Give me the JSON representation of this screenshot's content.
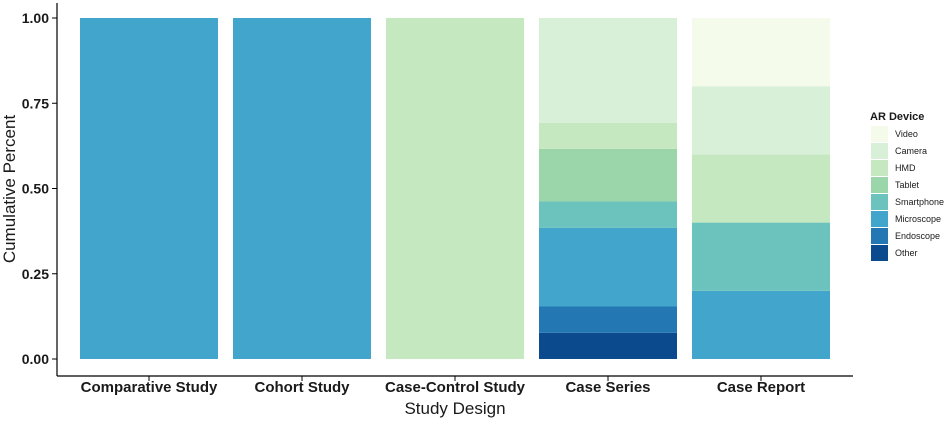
{
  "chart_data": {
    "type": "bar",
    "stacked": true,
    "xlabel": "Study Design",
    "ylabel": "Cumulative Percent",
    "ylim": [
      0,
      1
    ],
    "yticks": [
      "0.00",
      "0.25",
      "0.50",
      "0.75",
      "1.00"
    ],
    "categories": [
      "Comparative Study",
      "Cohort Study",
      "Case-Control Study",
      "Case Series",
      "Case Report"
    ],
    "legend_title": "AR Device",
    "legend_position": "right",
    "series": [
      {
        "name": "Other",
        "color": "#0c4a8e",
        "values": [
          0,
          0,
          0,
          0.077,
          0
        ]
      },
      {
        "name": "Endoscope",
        "color": "#2378b4",
        "values": [
          0,
          0,
          0,
          0.077,
          0
        ]
      },
      {
        "name": "Microscope",
        "color": "#42a5cb",
        "values": [
          1,
          1,
          0,
          0.231,
          0.2
        ]
      },
      {
        "name": "Smartphone",
        "color": "#6cc3bd",
        "values": [
          0,
          0,
          0,
          0.077,
          0.2
        ]
      },
      {
        "name": "Tablet",
        "color": "#9bd5aa",
        "values": [
          0,
          0,
          0,
          0.154,
          0
        ]
      },
      {
        "name": "HMD",
        "color": "#c5e8c1",
        "values": [
          0,
          0,
          1,
          0.077,
          0.2
        ]
      },
      {
        "name": "Camera",
        "color": "#d9f0d8",
        "values": [
          0,
          0,
          0,
          0.307,
          0.2
        ]
      },
      {
        "name": "Video",
        "color": "#f4fbea",
        "values": [
          0,
          0,
          0,
          0,
          0.2
        ]
      }
    ]
  }
}
